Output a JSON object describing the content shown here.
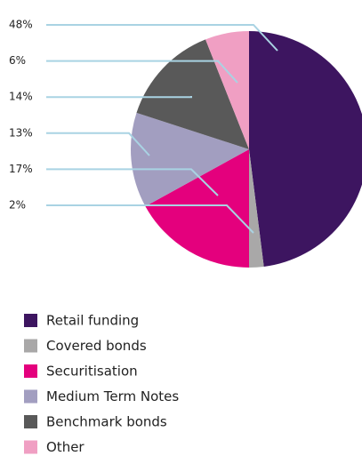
{
  "chart_data": {
    "type": "pie",
    "categories": [
      "Retail funding",
      "Covered bonds",
      "Securitisation",
      "Medium Term Notes",
      "Benchmark bonds",
      "Other"
    ],
    "values": [
      48,
      2,
      17,
      13,
      14,
      6
    ],
    "value_labels": [
      "48%",
      "2%",
      "17%",
      "13%",
      "14%",
      "6%"
    ],
    "colors": [
      "#3d1560",
      "#a9a8a8",
      "#e4007d",
      "#a29ec0",
      "#595959",
      "#f09fc3"
    ],
    "start_angle": 0,
    "direction": "clockwise"
  }
}
